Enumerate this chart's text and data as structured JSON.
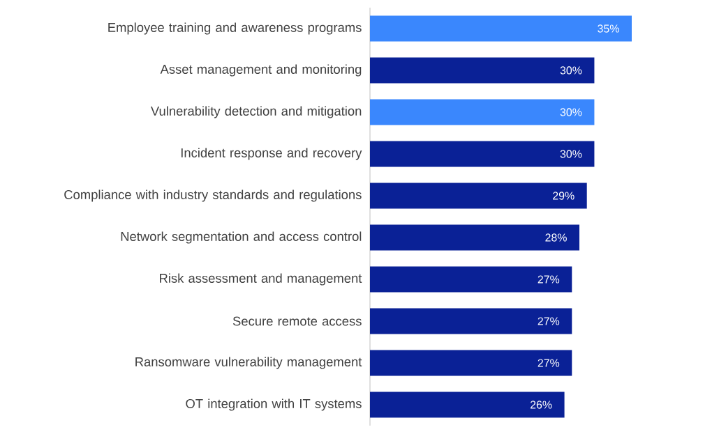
{
  "chart_data": {
    "type": "bar",
    "orientation": "horizontal",
    "categories": [
      "Employee training and awareness programs",
      "Asset management and monitoring",
      "Vulnerability detection and mitigation",
      "Incident response and recovery",
      "Compliance with industry standards and regulations",
      "Network segmentation and access control",
      "Risk assessment and management",
      "Secure remote access",
      "Ransomware vulnerability management",
      "OT integration with IT systems"
    ],
    "values": [
      35,
      30,
      30,
      30,
      29,
      28,
      27,
      27,
      27,
      26
    ],
    "value_labels": [
      "35%",
      "30%",
      "30%",
      "30%",
      "29%",
      "28%",
      "27%",
      "27%",
      "27%",
      "26%"
    ],
    "colors": [
      "#3a87fd",
      "#0a2196",
      "#3a87fd",
      "#0a2196",
      "#0a2196",
      "#0a2196",
      "#0a2196",
      "#0a2196",
      "#0a2196",
      "#0a2196"
    ]
  }
}
